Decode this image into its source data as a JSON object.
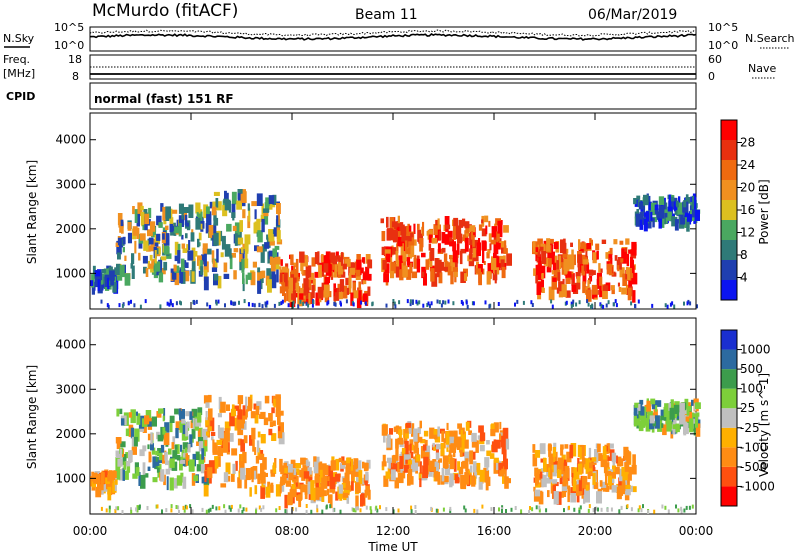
{
  "header": {
    "station": "McMurdo (fitACF)",
    "beam": "Beam 11",
    "date": "06/Mar/2019"
  },
  "noise_panel": {
    "left_label": "N.Sky",
    "right_label": "N.Search",
    "tick_top": "10^5",
    "tick_bottom": "10^0"
  },
  "freq_panel": {
    "left_label_1": "Freq.",
    "left_label_2": "[MHz]",
    "left_ticks": [
      "18",
      "8"
    ],
    "right_label": "Nave",
    "right_ticks": [
      "60",
      "0"
    ]
  },
  "cpid": {
    "label": "CPID",
    "value": "normal (fast) 151 RF"
  },
  "colors": {
    "power": [
      "#0b14f0",
      "#1f3fb0",
      "#2f7a78",
      "#4aa860",
      "#dcc020",
      "#f09020",
      "#ef6a10",
      "#e83010",
      "#ff0000"
    ],
    "velocity": [
      "#ff0000",
      "#ff5010",
      "#ff8c14",
      "#ffb000",
      "#c0c0c0",
      "#7dcf3a",
      "#3c9c4c",
      "#2c6aa0",
      "#1a2fd0"
    ]
  },
  "chart_data": [
    {
      "type": "heatmap",
      "name": "power",
      "ylabel": "Slant Range [km]",
      "yticks": [
        1000,
        2000,
        3000,
        4000
      ],
      "ylim": [
        200,
        4600
      ],
      "colorbar_label": "Power [dB]",
      "colorbar_ticks": [
        "4",
        "8",
        "12",
        "16",
        "20",
        "24",
        "28"
      ],
      "colorbar_range": [
        0,
        30
      ],
      "echo_regions": [
        {
          "t": [
            0.0,
            1.0
          ],
          "r": [
            800,
            1200
          ],
          "level": "weak"
        },
        {
          "t": [
            1.0,
            4.5
          ],
          "r": [
            1000,
            2600
          ],
          "level": "moderate"
        },
        {
          "t": [
            4.5,
            7.5
          ],
          "r": [
            800,
            2900
          ],
          "level": "moderate"
        },
        {
          "t": [
            7.5,
            11.0
          ],
          "r": [
            500,
            1500
          ],
          "level": "strong"
        },
        {
          "t": [
            11.5,
            16.5
          ],
          "r": [
            1000,
            2300
          ],
          "level": "strong"
        },
        {
          "t": [
            17.5,
            21.5
          ],
          "r": [
            600,
            1800
          ],
          "level": "strong"
        },
        {
          "t": [
            21.5,
            24.0
          ],
          "r": [
            2200,
            2800
          ],
          "level": "weak"
        }
      ]
    },
    {
      "type": "heatmap",
      "name": "velocity",
      "xlabel": "Time UT",
      "xticks": [
        "00:00",
        "04:00",
        "08:00",
        "12:00",
        "16:00",
        "20:00",
        "00:00"
      ],
      "xlim": [
        0,
        24
      ],
      "ylabel": "Slant Range [km]",
      "yticks": [
        1000,
        2000,
        3000,
        4000
      ],
      "ylim": [
        200,
        4600
      ],
      "colorbar_label": "Velocity [m s^-1]",
      "colorbar_ticks": [
        "1000",
        "500",
        "100",
        "25",
        "-25",
        "-100",
        "-500",
        "-1000"
      ],
      "echo_regions": [
        {
          "t": [
            0.0,
            1.0
          ],
          "r": [
            800,
            1200
          ],
          "level": "-100"
        },
        {
          "t": [
            1.0,
            4.5
          ],
          "r": [
            1000,
            2600
          ],
          "level": "25"
        },
        {
          "t": [
            4.5,
            7.5
          ],
          "r": [
            800,
            2900
          ],
          "level": "-100"
        },
        {
          "t": [
            7.5,
            11.0
          ],
          "r": [
            600,
            1500
          ],
          "level": "-100"
        },
        {
          "t": [
            11.5,
            16.5
          ],
          "r": [
            1000,
            2300
          ],
          "level": "-100"
        },
        {
          "t": [
            17.5,
            21.5
          ],
          "r": [
            700,
            1800
          ],
          "level": "-100"
        },
        {
          "t": [
            21.5,
            24.0
          ],
          "r": [
            2200,
            2800
          ],
          "level": "25"
        }
      ]
    }
  ]
}
